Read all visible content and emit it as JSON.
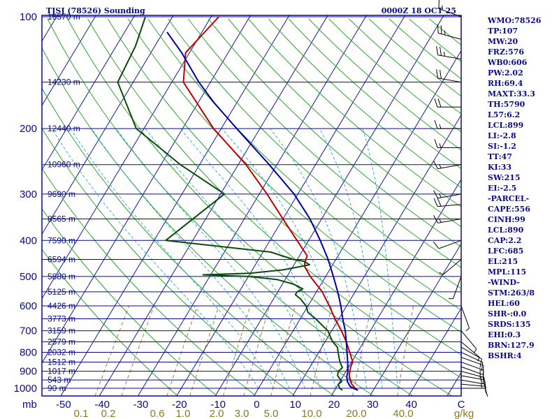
{
  "chart_data": {
    "type": "line",
    "title": "TJSJ (78526) Sounding",
    "datetime": "0000Z 18 OCT 25",
    "yaxis": {
      "label": "mb",
      "scale": "log-pressure",
      "ylim": [
        1000,
        100
      ],
      "ticks": [
        100,
        200,
        300,
        400,
        500,
        600,
        700,
        800,
        900,
        1000
      ]
    },
    "xaxis": {
      "label": "C",
      "temp_ticks": [
        -50,
        -40,
        -30,
        -20,
        -10,
        0,
        10,
        20,
        30,
        40
      ]
    },
    "mixing_ratio_labels": [
      "0.1",
      "0.2",
      "0.6",
      "1.0",
      "2.0",
      "3.0",
      "5.0",
      "10.0",
      "20.0",
      "40.0",
      "g/kg"
    ],
    "height_labels": [
      {
        "p": 100,
        "label": "16570 m"
      },
      {
        "p": 150,
        "label": "14230 m"
      },
      {
        "p": 200,
        "label": "12440 m"
      },
      {
        "p": 250,
        "label": "10960 m"
      },
      {
        "p": 300,
        "label": "9690 m"
      },
      {
        "p": 350,
        "label": "8565 m"
      },
      {
        "p": 400,
        "label": "7590 m"
      },
      {
        "p": 450,
        "label": "6594 m"
      },
      {
        "p": 500,
        "label": "5880 m"
      },
      {
        "p": 550,
        "label": "5125 m"
      },
      {
        "p": 600,
        "label": "4426 m"
      },
      {
        "p": 650,
        "label": "3773 m"
      },
      {
        "p": 700,
        "label": "3159 m"
      },
      {
        "p": 750,
        "label": "2579 m"
      },
      {
        "p": 800,
        "label": "2032 m"
      },
      {
        "p": 850,
        "label": "1512 m"
      },
      {
        "p": 900,
        "label": "1017 m"
      },
      {
        "p": 950,
        "label": "543 m"
      },
      {
        "p": 1000,
        "label": "90 m"
      }
    ],
    "series": [
      {
        "name": "Temperature",
        "color": "#c00000",
        "points": [
          [
            1012,
            26
          ],
          [
            1000,
            25
          ],
          [
            975,
            23.5
          ],
          [
            950,
            22.5
          ],
          [
            925,
            21.5
          ],
          [
            900,
            21
          ],
          [
            875,
            20.5
          ],
          [
            850,
            20.3
          ],
          [
            800,
            18
          ],
          [
            750,
            15.5
          ],
          [
            700,
            12.5
          ],
          [
            650,
            9
          ],
          [
            600,
            5.5
          ],
          [
            550,
            1.5
          ],
          [
            500,
            -4
          ],
          [
            470,
            -7
          ],
          [
            460,
            -7.5
          ],
          [
            440,
            -8
          ],
          [
            400,
            -13
          ],
          [
            350,
            -20
          ],
          [
            300,
            -28
          ],
          [
            250,
            -38
          ],
          [
            200,
            -52
          ],
          [
            150,
            -67
          ],
          [
            125,
            -71
          ],
          [
            100,
            -68
          ]
        ]
      },
      {
        "name": "Dewpoint",
        "color": "#0a4a0a",
        "points": [
          [
            1012,
            22
          ],
          [
            1000,
            21
          ],
          [
            975,
            20
          ],
          [
            960,
            20.5
          ],
          [
            950,
            20
          ],
          [
            925,
            18.5
          ],
          [
            900,
            18
          ],
          [
            880,
            18.5
          ],
          [
            850,
            17
          ],
          [
            825,
            16
          ],
          [
            800,
            15
          ],
          [
            775,
            14
          ],
          [
            750,
            12
          ],
          [
            725,
            10.5
          ],
          [
            700,
            9
          ],
          [
            675,
            6.5
          ],
          [
            650,
            4
          ],
          [
            625,
            1
          ],
          [
            600,
            -0.5
          ],
          [
            575,
            -3
          ],
          [
            560,
            -5
          ],
          [
            550,
            -5
          ],
          [
            540,
            -4
          ],
          [
            525,
            -7
          ],
          [
            510,
            -12
          ],
          [
            500,
            -20
          ],
          [
            495,
            -32
          ],
          [
            490,
            -20
          ],
          [
            480,
            -12
          ],
          [
            470,
            -8
          ],
          [
            465,
            -6
          ],
          [
            455,
            -8
          ],
          [
            450,
            -11
          ],
          [
            430,
            -18
          ],
          [
            400,
            -47
          ],
          [
            300,
            -39
          ],
          [
            250,
            -55
          ],
          [
            200,
            -72
          ],
          [
            150,
            -84
          ],
          [
            120,
            -85
          ],
          [
            100,
            -87
          ]
        ]
      },
      {
        "name": "Parcel",
        "color": "#0000a0",
        "points": [
          [
            1012,
            26
          ],
          [
            990,
            23.5
          ],
          [
            960,
            22
          ],
          [
            930,
            21
          ],
          [
            900,
            20.5
          ],
          [
            850,
            19
          ],
          [
            800,
            17.3
          ],
          [
            750,
            15.5
          ],
          [
            700,
            13.5
          ],
          [
            650,
            11
          ],
          [
            600,
            8.5
          ],
          [
            550,
            5.5
          ],
          [
            500,
            2
          ],
          [
            450,
            -2
          ],
          [
            400,
            -7
          ],
          [
            350,
            -13
          ],
          [
            300,
            -21
          ],
          [
            250,
            -32
          ],
          [
            200,
            -46
          ],
          [
            170,
            -56
          ],
          [
            150,
            -63
          ],
          [
            125,
            -72
          ],
          [
            110,
            -79
          ]
        ]
      }
    ],
    "wind_barbs": [
      {
        "p": 1000,
        "dir": 90,
        "spd": 10
      },
      {
        "p": 975,
        "dir": 95,
        "spd": 10
      },
      {
        "p": 950,
        "dir": 100,
        "spd": 15
      },
      {
        "p": 925,
        "dir": 100,
        "spd": 15
      },
      {
        "p": 900,
        "dir": 105,
        "spd": 15
      },
      {
        "p": 875,
        "dir": 110,
        "spd": 15
      },
      {
        "p": 850,
        "dir": 110,
        "spd": 15
      },
      {
        "p": 825,
        "dir": 110,
        "spd": 10
      },
      {
        "p": 800,
        "dir": 115,
        "spd": 10
      },
      {
        "p": 775,
        "dir": 120,
        "spd": 10
      },
      {
        "p": 750,
        "dir": 130,
        "spd": 5
      },
      {
        "p": 700,
        "dir": 140,
        "spd": 5
      },
      {
        "p": 600,
        "dir": 160,
        "spd": 5
      },
      {
        "p": 500,
        "dir": 200,
        "spd": 5
      },
      {
        "p": 450,
        "dir": 230,
        "spd": 5
      },
      {
        "p": 400,
        "dir": 250,
        "spd": 10
      },
      {
        "p": 350,
        "dir": 260,
        "spd": 15
      },
      {
        "p": 320,
        "dir": 265,
        "spd": 20
      },
      {
        "p": 300,
        "dir": 260,
        "spd": 15
      },
      {
        "p": 250,
        "dir": 260,
        "spd": 15
      },
      {
        "p": 225,
        "dir": 270,
        "spd": 15
      },
      {
        "p": 200,
        "dir": 270,
        "spd": 15
      },
      {
        "p": 175,
        "dir": 270,
        "spd": 20
      },
      {
        "p": 150,
        "dir": 280,
        "spd": 20
      },
      {
        "p": 130,
        "dir": 280,
        "spd": 25
      },
      {
        "p": 115,
        "dir": 285,
        "spd": 25
      },
      {
        "p": 100,
        "dir": 290,
        "spd": 15
      }
    ]
  },
  "indices": [
    "WMO:78526",
    "TP:107",
    "MW:20",
    "FRZ:576",
    "WB0:606",
    "PW:2.02",
    "RH:69.4",
    "MAXT:33.3",
    "TH:5790",
    "L57:6.2",
    "LCL:899",
    "LI:-2.8",
    "SI:-1.2",
    "TT:47",
    "KI:33",
    "SW:215",
    "EI:-2.5",
    "-PARCEL-",
    "CAPE:556",
    "CINH:99",
    "LCL:890",
    "CAP:2.2",
    "LFC:685",
    "EL:215",
    "MPL:115",
    "-WIND-",
    "STM:263/8",
    "HEL:60",
    "SHR-:0.0",
    "SRDS:135",
    "EHI:0.3",
    "BRN:127.9",
    "BSHR:4"
  ],
  "colors": {
    "frame": "#0a0a8c",
    "isobar": "#0a0a8c",
    "isotherm": "#1414a0",
    "dry_adiabat": "#2aa52a",
    "moist_adiabat": "#2aa6c8",
    "mixing_ratio": "#8a7a1c",
    "wind_barb": "#000000"
  }
}
